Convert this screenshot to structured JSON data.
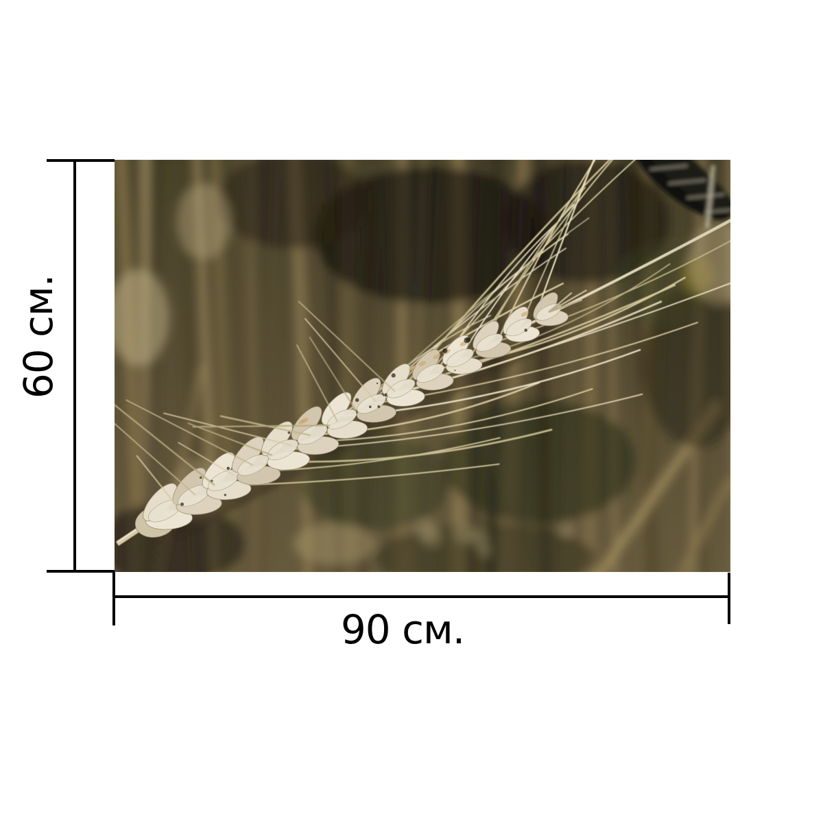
{
  "dimensions": {
    "height_label": "60 см.",
    "width_label": "90 см."
  },
  "style": {
    "line_color": "#000000",
    "label_color": "#000000",
    "page_background": "#ffffff",
    "photo_palette": {
      "field_dark": "#4a432d",
      "field_mid": "#564c33",
      "field_light": "#665a3d",
      "stalk_light": "#a08c5e",
      "ear_pale": "#ece5d4",
      "awn_cream": "#ece2bf"
    }
  }
}
